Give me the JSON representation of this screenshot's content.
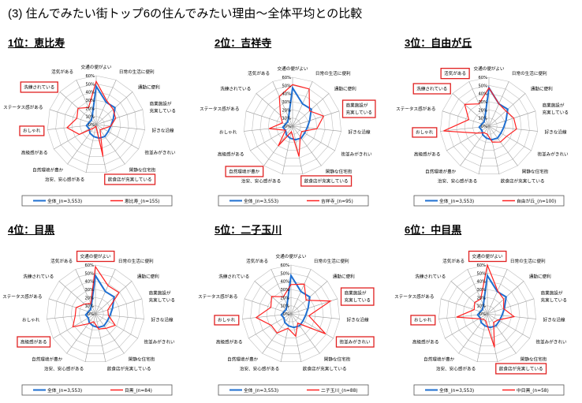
{
  "title": "(3) 住んでみたい街トップ6の住んでみたい理由～全体平均との比較",
  "colors": {
    "overall": "#1f6fd1",
    "town": "#ff2020",
    "highlight_box": "#e02020",
    "grid": "#bfbfbf"
  },
  "chart_data": {
    "type": "radar",
    "axes": [
      [
        "交通の便がよい"
      ],
      [
        "日常の生活に便利"
      ],
      [
        "通勤に便利"
      ],
      [
        "商業施設が",
        "充実している"
      ],
      [
        "好きな沿線"
      ],
      [
        "街並みがきれい"
      ],
      [
        "閑静な住宅街"
      ],
      [
        "飲食店が充実している"
      ],
      [
        "治安、安心感がある"
      ],
      [
        "自然環境が豊か"
      ],
      [
        "高級感がある"
      ],
      [
        "おしゃれ"
      ],
      [
        "ステータス感がある"
      ],
      [
        "洗練されている"
      ],
      [
        "活気がある"
      ]
    ],
    "ticks": [
      "0%",
      "10%",
      "20%",
      "30%",
      "40%",
      "50%",
      "60%"
    ],
    "rmax": 60,
    "overall_values": [
      47,
      30,
      31,
      22,
      18,
      17,
      18,
      17,
      15,
      13,
      10,
      12,
      9,
      8,
      12
    ],
    "charts": [
      {
        "heading": "1位：恵比寿",
        "legend_overall": "全体_(n=3,553)",
        "legend_town": "恵比寿_(n=155)",
        "highlights": [
          13,
          11,
          7
        ],
        "values": [
          53,
          32,
          28,
          25,
          18,
          10,
          8,
          40,
          2,
          5,
          24,
          36,
          25,
          30,
          23
        ]
      },
      {
        "heading": "2位：吉祥寺",
        "legend_overall": "全体_(n=3,553)",
        "legend_town": "吉祥寺_(n=95)",
        "highlights": [
          3,
          9,
          7
        ],
        "values": [
          51,
          50,
          28,
          40,
          30,
          13,
          16,
          38,
          7,
          30,
          10,
          29,
          13,
          20,
          40
        ]
      },
      {
        "heading": "3位：自由が丘",
        "legend_overall": "全体_(n=3,553)",
        "legend_town": "自由が丘_(n=100)",
        "highlights": [
          14,
          13,
          11
        ],
        "values": [
          47,
          30,
          28,
          32,
          34,
          25,
          24,
          20,
          10,
          10,
          17,
          56,
          26,
          40,
          30
        ]
      },
      {
        "heading": "4位：目黒",
        "legend_overall": "全体_(n=3,553)",
        "legend_town": "目黒_(n=84)",
        "highlights": [
          0,
          10
        ],
        "values": [
          58,
          38,
          39,
          16,
          16,
          28,
          22,
          19,
          10,
          15,
          32,
          25,
          25,
          18,
          14
        ]
      },
      {
        "heading": "5位：二子玉川",
        "legend_overall": "全体_(n=3,553)",
        "legend_town": "二子玉川_(n=88)",
        "highlights": [
          3,
          11,
          5
        ],
        "values": [
          36,
          40,
          25,
          51,
          22,
          49,
          14,
          28,
          18,
          29,
          28,
          43,
          26,
          32,
          23
        ]
      },
      {
        "heading": "6位：中目黒",
        "legend_overall": "全体_(n=3,553)",
        "legend_town": "中目黒_(n=58)",
        "highlights": [
          0,
          11,
          7
        ],
        "values": [
          60,
          31,
          27,
          21,
          33,
          15,
          13,
          42,
          9,
          8,
          12,
          38,
          17,
          21,
          20
        ]
      }
    ]
  }
}
